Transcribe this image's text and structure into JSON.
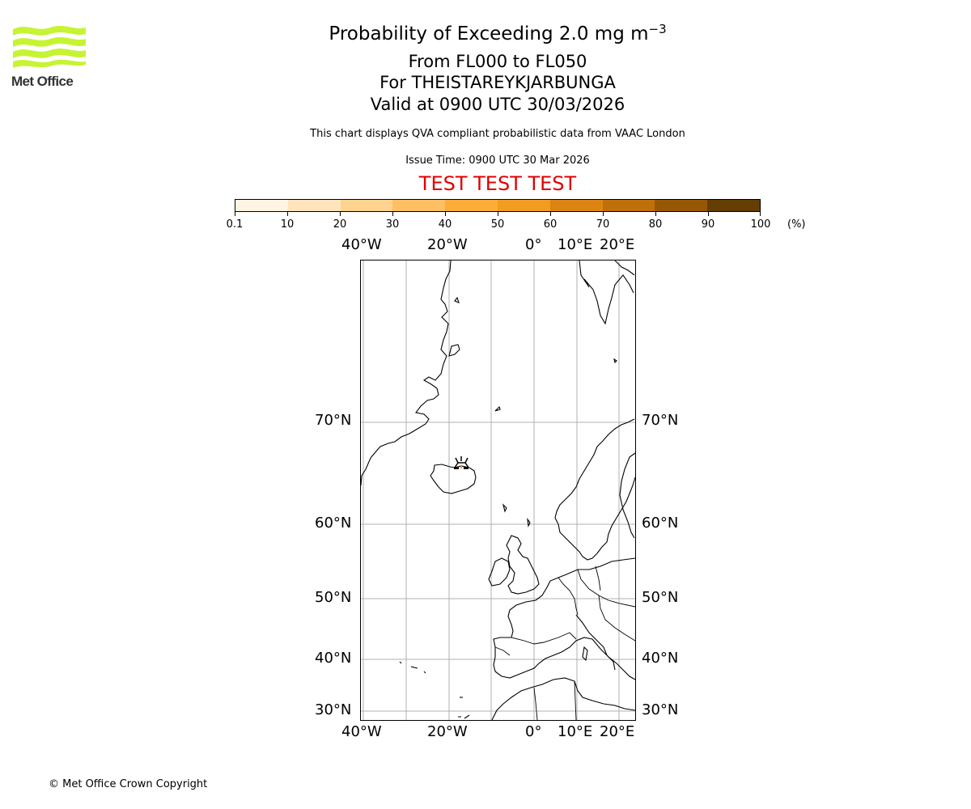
{
  "logo": {
    "name": "Met Office",
    "brand_color": "#c6f432"
  },
  "header": {
    "title_main": "Probability of Exceeding 2.0 mg m",
    "title_superscript": "−3",
    "level_range": "From FL000 to FL050",
    "volcano_line": "For THEISTAREYKJARBUNGA",
    "valid_time": "Valid at 0900 UTC 30/03/2026",
    "description": "This chart displays QVA compliant probabilistic data from VAAC London",
    "issue_time": "Issue Time: 0900 UTC 30 Mar 2026",
    "test_banner": "TEST TEST TEST",
    "test_banner_color": "#e00000"
  },
  "colorbar": {
    "unit_label": "(%)",
    "tick_labels": [
      "0.1",
      "10",
      "20",
      "30",
      "40",
      "50",
      "60",
      "70",
      "80",
      "90",
      "100"
    ],
    "colors": [
      "#fff4e2",
      "#fee3bb",
      "#fed28f",
      "#fec063",
      "#fdad38",
      "#f29d21",
      "#dc8412",
      "#bf700a",
      "#975806",
      "#663e04"
    ]
  },
  "map": {
    "top_lon_labels": [
      "40°W",
      "20°W",
      "0°",
      "10°E",
      "20°E"
    ],
    "bottom_lon_labels": [
      "40°W",
      "20°W",
      "0°",
      "10°E",
      "20°E"
    ],
    "left_lat_labels": [
      "70°N",
      "60°N",
      "50°N",
      "40°N",
      "30°N"
    ],
    "right_lat_labels": [
      "70°N",
      "60°N",
      "50°N",
      "40°N",
      "30°N"
    ],
    "gridline_color": "#b0b0b0",
    "volcano_marker": "volcano-symbol over northern Iceland"
  },
  "chart_data": {
    "type": "heatmap",
    "title": "Probability of Exceeding 2.0 mg m−3",
    "subtitle": [
      "From FL000 to FL050",
      "For THEISTAREYKJARBUNGA",
      "Valid at 0900 UTC 30/03/2026"
    ],
    "colorbar_bins": [
      [
        0.1,
        10
      ],
      [
        10,
        20
      ],
      [
        20,
        30
      ],
      [
        30,
        40
      ],
      [
        40,
        50
      ],
      [
        50,
        60
      ],
      [
        60,
        70
      ],
      [
        70,
        80
      ],
      [
        80,
        90
      ],
      [
        90,
        100
      ]
    ],
    "colorbar_unit": "%",
    "x_ticks": [
      "40°W",
      "20°W",
      "0°",
      "10°E",
      "20°E"
    ],
    "y_ticks": [
      "30°N",
      "40°N",
      "50°N",
      "60°N",
      "70°N"
    ],
    "extent": {
      "lon": [
        -40,
        24
      ],
      "lat": [
        29,
        82
      ]
    },
    "grid": true,
    "features": [
      "coastlines",
      "country borders",
      "volcano marker at Theistareykjarbunga, Iceland",
      "tiny probability patch near volcano (orange)"
    ]
  },
  "footer": {
    "copyright": "© Met Office Crown Copyright"
  }
}
